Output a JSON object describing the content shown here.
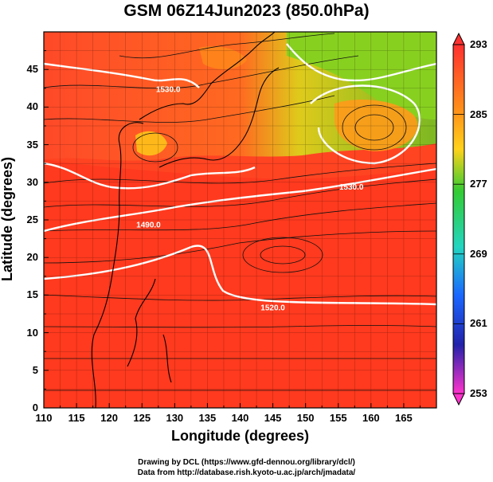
{
  "title": "GSM 06Z14Jun2023 (850.0hPa)",
  "x_axis": {
    "label": "Longitude (degrees)",
    "ticks": [
      "110",
      "115",
      "120",
      "125",
      "130",
      "135",
      "140",
      "145",
      "150",
      "155",
      "160",
      "165"
    ]
  },
  "y_axis": {
    "label": "Latitude (degrees)",
    "ticks": [
      "0",
      "5",
      "10",
      "15",
      "20",
      "25",
      "30",
      "35",
      "40",
      "45"
    ]
  },
  "colorbar": {
    "ticks": [
      "293",
      "285",
      "277",
      "269",
      "261",
      "253"
    ],
    "colors": [
      "#ff3333",
      "#ff8c1a",
      "#ffd21a",
      "#33cc33",
      "#22d5c0",
      "#1a66ff",
      "#2222aa",
      "#ff33cc"
    ]
  },
  "contour_labels": [
    {
      "text": "1530.0",
      "lon": 129,
      "lat": 42
    },
    {
      "text": "1530.0",
      "lon": 157,
      "lat": 29
    },
    {
      "text": "1490.0",
      "lon": 126,
      "lat": 24
    },
    {
      "text": "1520.0",
      "lon": 145,
      "lat": 13
    }
  ],
  "credits": {
    "line1": "Drawing by DCL (https://www.gfd-dennou.org/library/dcl/)",
    "line2": "Data from http://database.rish.kyoto-u.ac.jp/arch/jmadata/"
  }
}
